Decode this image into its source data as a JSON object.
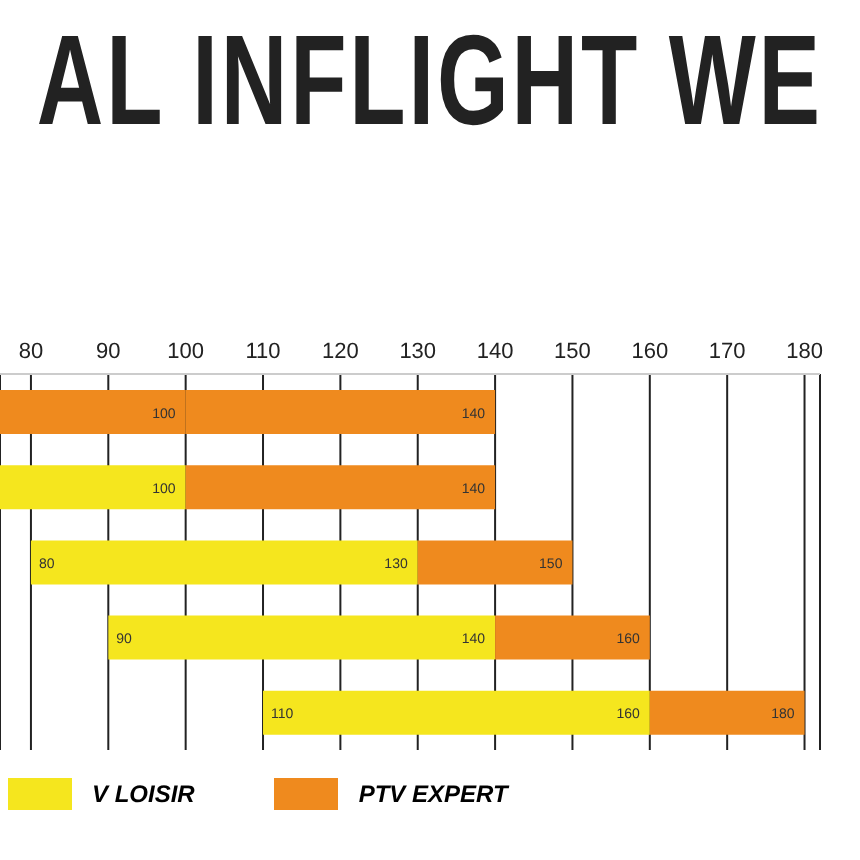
{
  "chart_data": {
    "type": "bar",
    "orientation": "horizontal",
    "title": "AL INFLIGHT WE",
    "categories": [
      null,
      null,
      null,
      null,
      null
    ],
    "series": [
      {
        "name": "V LOISIR",
        "color": "#f5e61e",
        "colors": [
          "#ef8a1e",
          "#f5e61e",
          "#f5e61e",
          "#f5e61e",
          "#f5e61e"
        ],
        "base": [
          76,
          76,
          80,
          90,
          110
        ],
        "values": [
          24,
          24,
          50,
          50,
          50
        ]
      },
      {
        "name": "PTV EXPERT",
        "color": "#ef8a1e",
        "base": [
          100,
          100,
          130,
          140,
          160
        ],
        "values": [
          40,
          40,
          20,
          20,
          20
        ]
      }
    ],
    "annotations": [
      {
        "text": "100",
        "x": 100
      },
      {
        "text": "140",
        "x": 140
      },
      {
        "text": "100",
        "x": 100
      },
      {
        "text": "140",
        "x": 140
      },
      {
        "text": "80",
        "x": 80
      },
      {
        "text": "130",
        "x": 130
      },
      {
        "text": "150",
        "x": 150
      },
      {
        "text": "90",
        "x": 90
      },
      {
        "text": "140",
        "x": 140
      },
      {
        "text": "160",
        "x": 160
      },
      {
        "text": "110",
        "x": 110
      },
      {
        "text": "160",
        "x": 160
      },
      {
        "text": "180",
        "x": 180
      }
    ],
    "xlim": [
      76,
      182
    ],
    "xticks": [
      80,
      90,
      100,
      110,
      120,
      130,
      140,
      150,
      160,
      170,
      180
    ],
    "grid": "x",
    "legend": "bottom"
  }
}
